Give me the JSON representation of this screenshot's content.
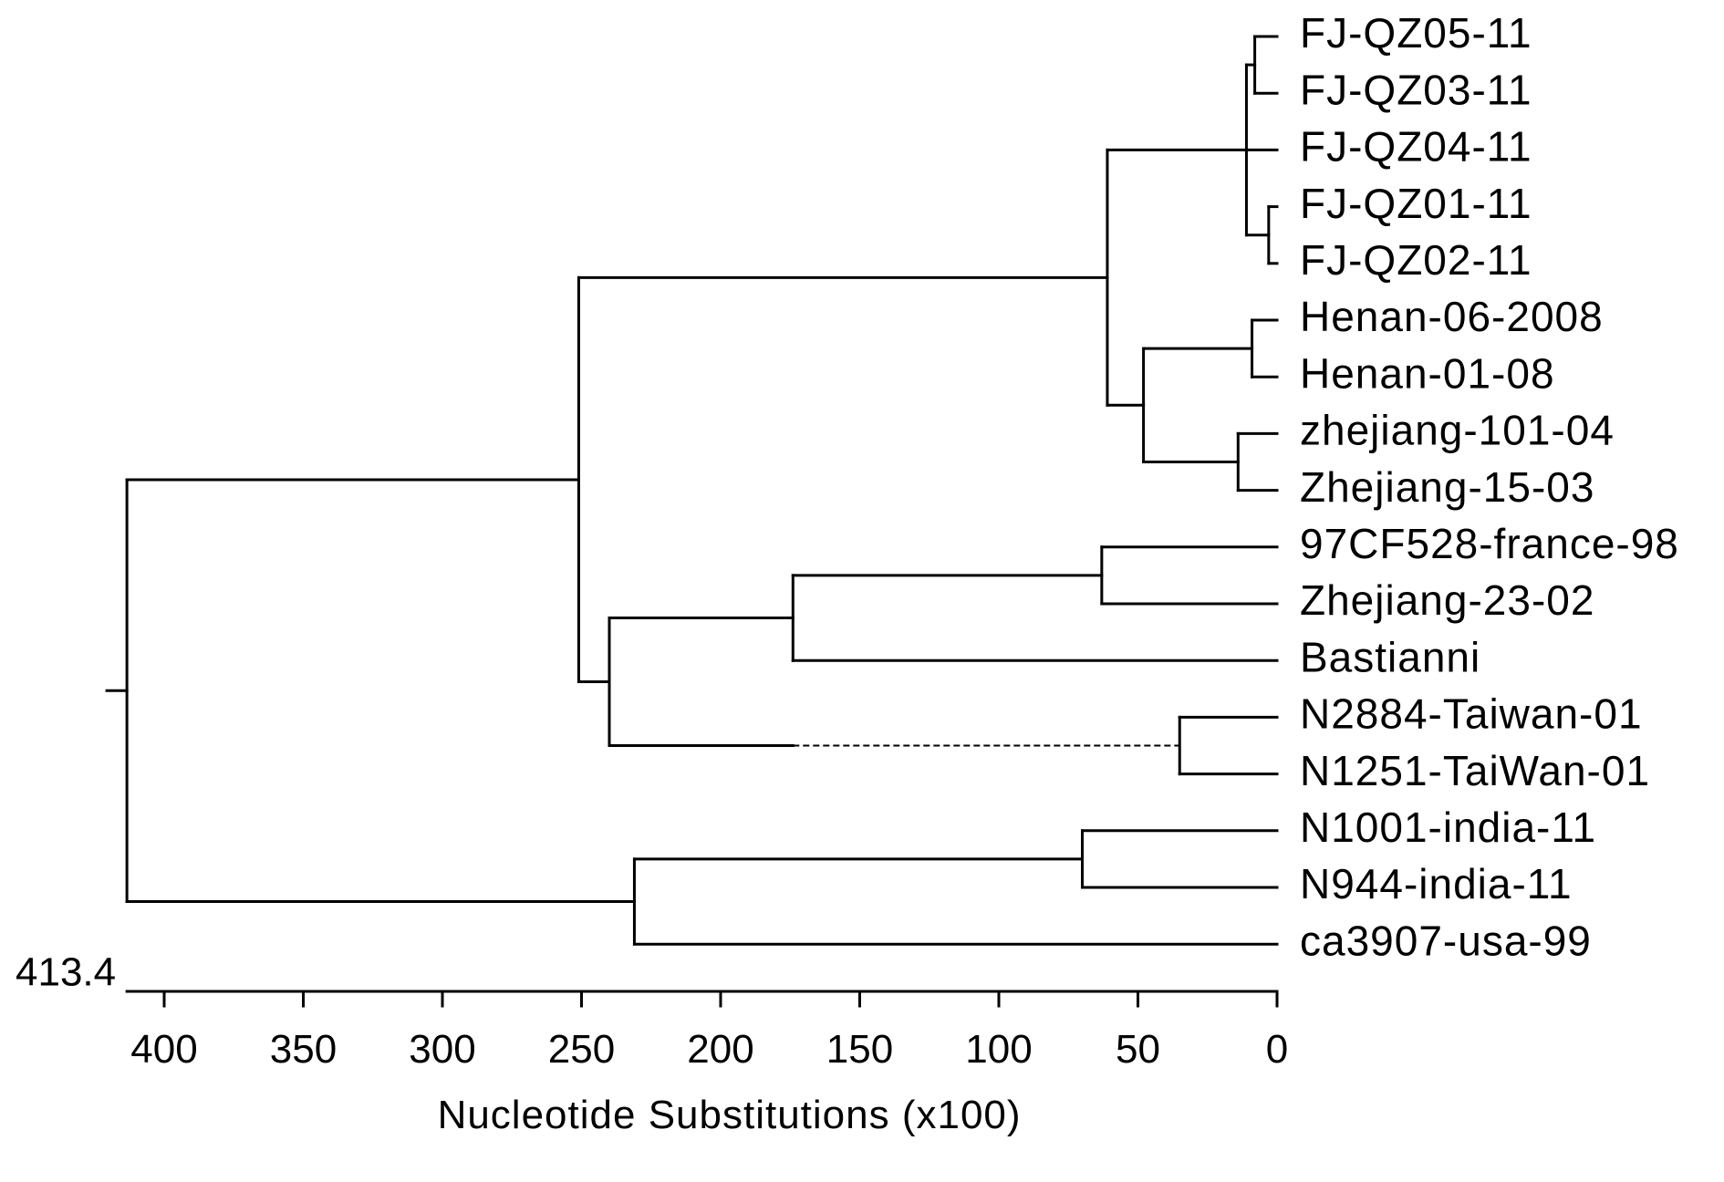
{
  "tree": {
    "root_label": "413.4",
    "leaves": [
      {
        "id": "fjqz0511",
        "label": "FJ-QZ05-11",
        "branch_end": 0
      },
      {
        "id": "fjqz0311",
        "label": "FJ-QZ03-11",
        "branch_end": 0
      },
      {
        "id": "fjqz0411",
        "label": "FJ-QZ04-11",
        "branch_end": 0
      },
      {
        "id": "fjqz0111",
        "label": "FJ-QZ01-11",
        "branch_end": 0
      },
      {
        "id": "fjqz0211",
        "label": "FJ-QZ02-11",
        "branch_end": 0
      },
      {
        "id": "henan062008",
        "label": "Henan-06-2008",
        "branch_end": 0
      },
      {
        "id": "henan0108",
        "label": "Henan-01-08",
        "branch_end": 0
      },
      {
        "id": "zhejiang10104",
        "label": "zhejiang-101-04",
        "branch_end": 0
      },
      {
        "id": "zhejiang1503",
        "label": "Zhejiang-15-03",
        "branch_end": 0
      },
      {
        "id": "cf528france98",
        "label": "97CF528-france-98",
        "branch_end": 0
      },
      {
        "id": "zhejiang2302",
        "label": "Zhejiang-23-02",
        "branch_end": 0
      },
      {
        "id": "bastianni",
        "label": "Bastianni",
        "branch_end": 0
      },
      {
        "id": "n2884taiwan01",
        "label": "N2884-Taiwan-01",
        "branch_end": 0
      },
      {
        "id": "n1251taiwan01",
        "label": "N1251-TaiWan-01",
        "branch_end": 0
      },
      {
        "id": "n1001india11",
        "label": "N1001-india-11",
        "branch_end": 0
      },
      {
        "id": "n944india11",
        "label": "N944-india-11",
        "branch_end": 0
      },
      {
        "id": "ca3907usa99",
        "label": "ca3907-usa-99",
        "branch_end": 0
      }
    ],
    "nodes": [
      {
        "id": "a",
        "x": 8,
        "children": [
          "fjqz0511",
          "fjqz0311"
        ]
      },
      {
        "id": "b",
        "x": 3,
        "children": [
          "fjqz0111",
          "fjqz0211"
        ]
      },
      {
        "id": "c",
        "x": 11,
        "children": [
          "a",
          "fjqz0411",
          "b"
        ]
      },
      {
        "id": "d",
        "x": 9,
        "children": [
          "henan062008",
          "henan0108"
        ]
      },
      {
        "id": "e",
        "x": 14,
        "children": [
          "zhejiang10104",
          "zhejiang1503"
        ]
      },
      {
        "id": "f",
        "x": 48,
        "children": [
          "d",
          "e"
        ]
      },
      {
        "id": "g",
        "x": 61,
        "children": [
          "c",
          "f"
        ]
      },
      {
        "id": "h",
        "x": 63,
        "children": [
          "cf528france98",
          "zhejiang2302"
        ]
      },
      {
        "id": "i",
        "x": 174,
        "children": [
          "h",
          "bastianni"
        ]
      },
      {
        "id": "j",
        "x": 35,
        "children": [
          "n2884taiwan01",
          "n1251taiwan01"
        ]
      },
      {
        "id": "k",
        "x": 240,
        "children": [
          "i",
          "j"
        ],
        "dashed_child": "j",
        "dashed_from": 174
      },
      {
        "id": "l",
        "x": 251,
        "children": [
          "g",
          "k"
        ]
      },
      {
        "id": "m",
        "x": 70,
        "children": [
          "n1001india11",
          "n944india11"
        ]
      },
      {
        "id": "n",
        "x": 231,
        "children": [
          "m",
          "ca3907usa99"
        ]
      },
      {
        "id": "root",
        "x": 413.4,
        "children": [
          "l",
          "n"
        ]
      }
    ]
  },
  "axis": {
    "title": "Nucleotide Substitutions (x100)",
    "min": 0,
    "max": 413.4,
    "ticks": [
      400,
      350,
      300,
      250,
      200,
      150,
      100,
      50,
      0
    ],
    "tick_labels": [
      "400",
      "350",
      "300",
      "250",
      "200",
      "150",
      "100",
      "50",
      "0"
    ],
    "reversed": true
  },
  "colors": {
    "line": "#000000",
    "text": "#000000",
    "background": "#ffffff"
  }
}
